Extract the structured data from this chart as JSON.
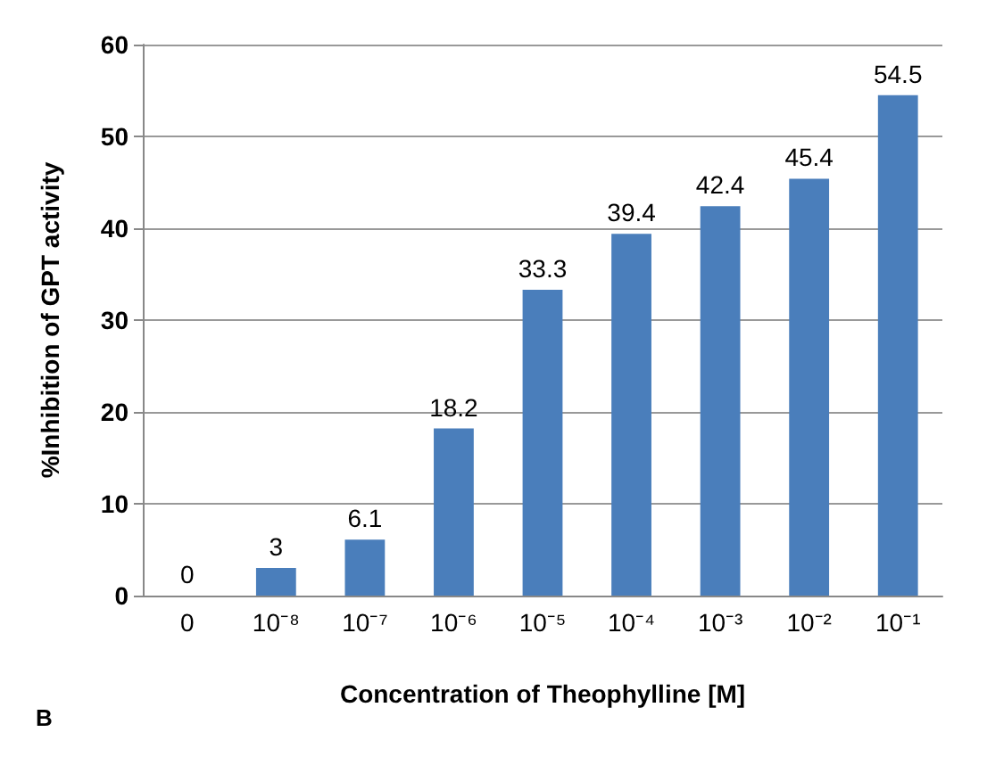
{
  "chart_data": {
    "type": "bar",
    "xlabel": "Concentration of Theophylline [M]",
    "ylabel": "%Inhibition of GPT activity",
    "categories": [
      "0",
      "10⁻⁸",
      "10⁻⁷",
      "10⁻⁶",
      "10⁻⁵",
      "10⁻⁴",
      "10⁻³",
      "10⁻²",
      "10⁻¹"
    ],
    "values": [
      0,
      3,
      6.1,
      18.2,
      33.3,
      39.4,
      42.4,
      45.4,
      54.5
    ],
    "color": "#4a7ebb",
    "ylim": [
      0,
      60
    ],
    "yticks": [
      0,
      10,
      20,
      30,
      40,
      50,
      60
    ],
    "grid": "y",
    "data_labels": true,
    "annotations": [
      "B"
    ]
  }
}
